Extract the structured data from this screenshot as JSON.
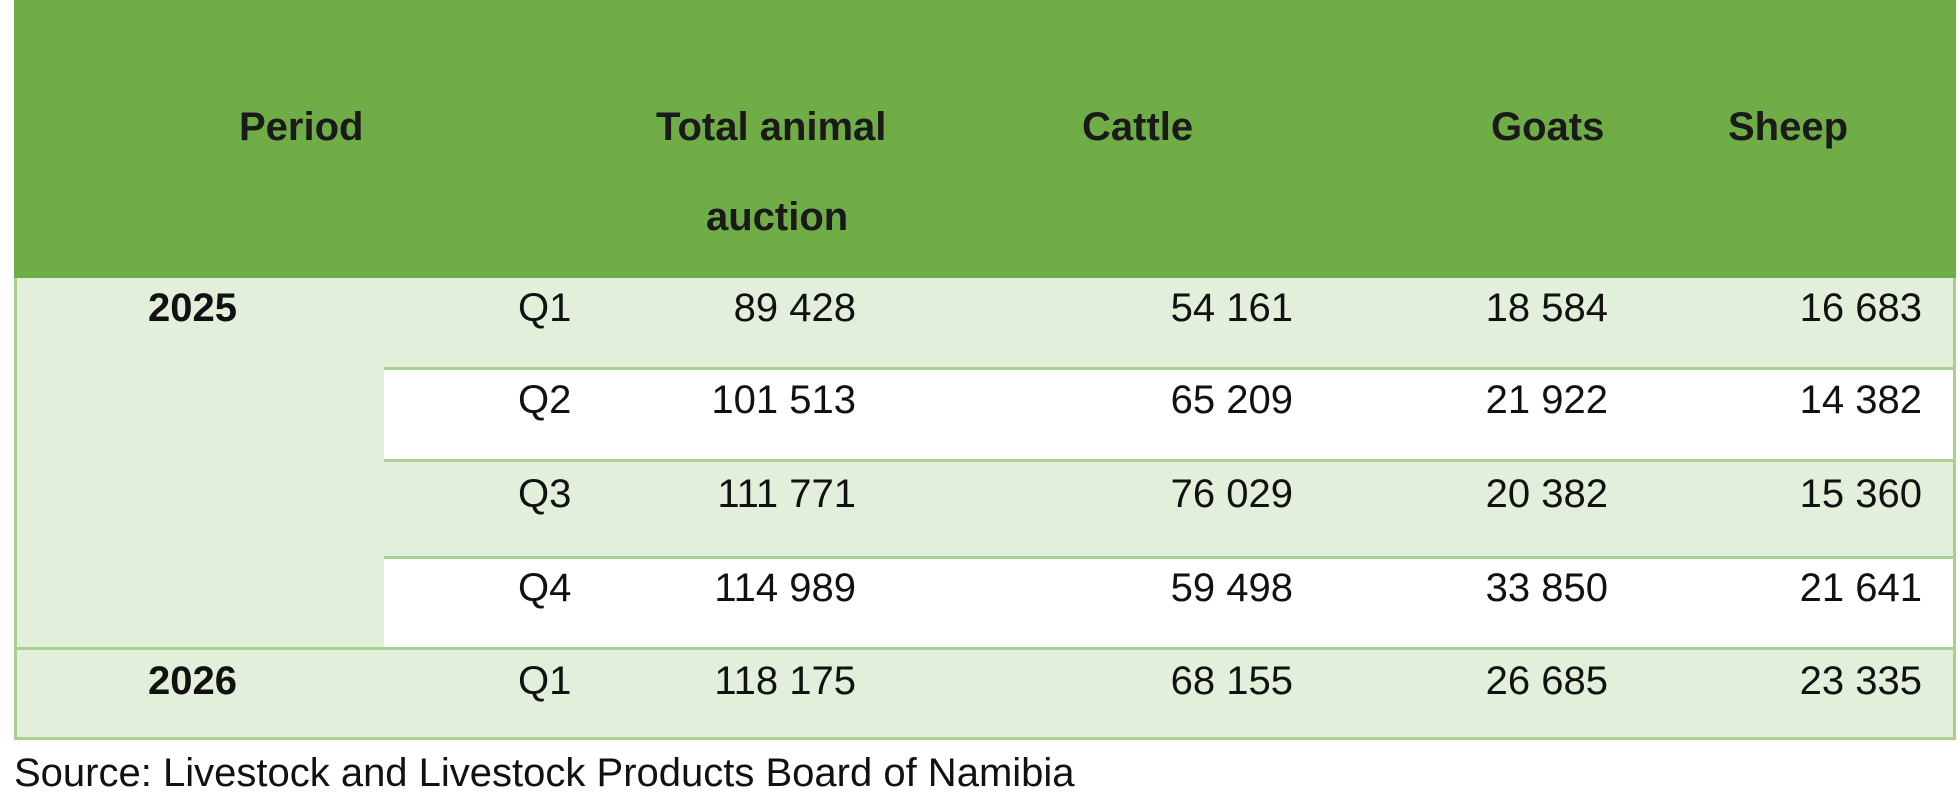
{
  "table": {
    "headers": {
      "period": "Period",
      "total_line1": "Total animal",
      "total_line2": "auction",
      "cattle": "Cattle",
      "goats": "Goats",
      "sheep": "Sheep"
    },
    "rows": [
      {
        "year": "2025",
        "quarter": "Q1",
        "total": "89 428",
        "cattle": "54 161",
        "goats": "18 584",
        "sheep": "16 683"
      },
      {
        "year": "",
        "quarter": "Q2",
        "total": "101 513",
        "cattle": "65 209",
        "goats": "21 922",
        "sheep": "14 382"
      },
      {
        "year": "",
        "quarter": "Q3",
        "total": "111 771",
        "cattle": "76 029",
        "goats": "20 382",
        "sheep": "15 360"
      },
      {
        "year": "",
        "quarter": "Q4",
        "total": "114 989",
        "cattle": "59 498",
        "goats": "33 850",
        "sheep": "21 641"
      },
      {
        "year": "2026",
        "quarter": "Q1",
        "total": "118 175",
        "cattle": "68 155",
        "goats": "26 685",
        "sheep": "23 335"
      }
    ],
    "colors": {
      "header_bg": "#70ad47",
      "band_bg": "#e2efda",
      "border": "#a9d08e"
    }
  },
  "source": "Source: Livestock and Livestock Products Board of Namibia"
}
